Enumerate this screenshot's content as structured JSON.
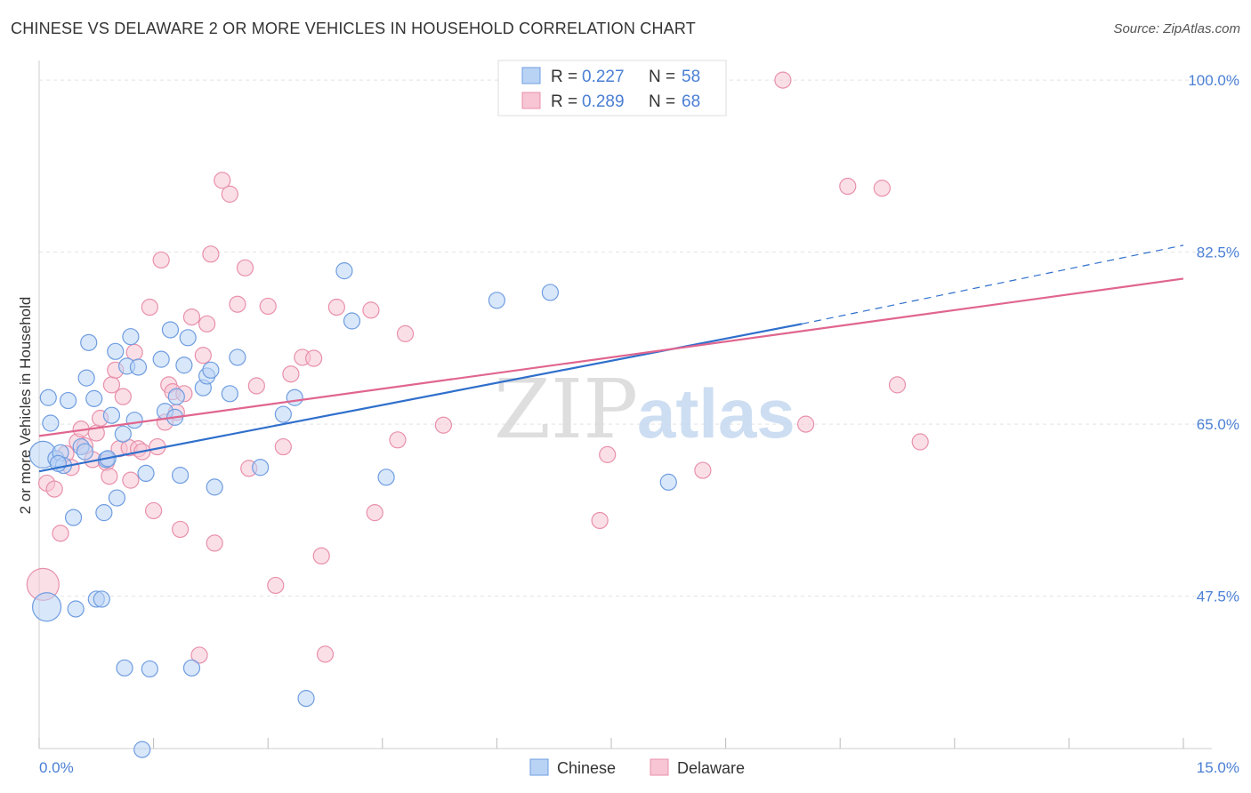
{
  "title": "CHINESE VS DELAWARE 2 OR MORE VEHICLES IN HOUSEHOLD CORRELATION CHART",
  "source": "Source: ZipAtlas.com",
  "watermark": {
    "zip": "ZIP",
    "atlas": "atlas"
  },
  "legend": {
    "r_label": "R = ",
    "n_label": "N = ",
    "entries": [
      {
        "r": "0.227",
        "n": "58"
      },
      {
        "r": "0.289",
        "n": "68"
      }
    ]
  },
  "colors": {
    "chinese_fill": "#b9d3f5",
    "chinese_stroke": "#6f9de0",
    "chinese_line": "#2f6fcc",
    "delaware_fill": "#f7c5d4",
    "delaware_stroke": "#e890aa",
    "delaware_line": "#e0658f",
    "tick_color": "#4a7fd4"
  },
  "chart_data": {
    "type": "scatter",
    "xlabel": "",
    "ylabel": "2 or more Vehicles in Household",
    "xlim": [
      0,
      15
    ],
    "ylim": [
      32,
      102
    ],
    "x_tick_labels": [
      "0.0%",
      "15.0%"
    ],
    "y_ticks": [
      47.5,
      65.0,
      82.5,
      100.0
    ],
    "y_tick_labels": [
      "47.5%",
      "65.0%",
      "82.5%",
      "100.0%"
    ],
    "grid": true,
    "legend_position": "top-center",
    "series": [
      {
        "name": "Chinese",
        "trend": {
          "x0": 0,
          "y0": 60.2,
          "x1": 10.0,
          "y1": 75.2,
          "dash_to_x": 15.0,
          "dash_to_y": 83.2
        },
        "points": [
          [
            0.05,
            61.9
          ],
          [
            0.15,
            65.1
          ],
          [
            0.12,
            67.7
          ],
          [
            0.22,
            61.5
          ],
          [
            0.28,
            62.1
          ],
          [
            0.32,
            60.8
          ],
          [
            0.38,
            67.4
          ],
          [
            0.45,
            55.5
          ],
          [
            0.48,
            46.2
          ],
          [
            0.55,
            62.7
          ],
          [
            0.6,
            62.2
          ],
          [
            0.62,
            69.7
          ],
          [
            0.65,
            73.3
          ],
          [
            0.72,
            67.6
          ],
          [
            0.75,
            47.2
          ],
          [
            0.82,
            47.2
          ],
          [
            0.85,
            56.0
          ],
          [
            0.88,
            61.4
          ],
          [
            0.95,
            65.9
          ],
          [
            1.0,
            72.4
          ],
          [
            1.02,
            57.5
          ],
          [
            1.1,
            64.0
          ],
          [
            1.12,
            40.2
          ],
          [
            1.15,
            70.9
          ],
          [
            1.2,
            73.9
          ],
          [
            1.25,
            65.4
          ],
          [
            1.3,
            70.8
          ],
          [
            1.35,
            31.9
          ],
          [
            1.4,
            60.0
          ],
          [
            1.45,
            40.1
          ],
          [
            1.6,
            71.6
          ],
          [
            1.65,
            66.3
          ],
          [
            1.72,
            74.6
          ],
          [
            1.78,
            65.7
          ],
          [
            1.85,
            59.8
          ],
          [
            1.9,
            71.0
          ],
          [
            1.95,
            73.8
          ],
          [
            2.15,
            68.7
          ],
          [
            2.2,
            69.9
          ],
          [
            2.25,
            70.5
          ],
          [
            2.3,
            58.6
          ],
          [
            2.5,
            68.1
          ],
          [
            2.6,
            71.8
          ],
          [
            2.9,
            60.6
          ],
          [
            3.2,
            66.0
          ],
          [
            3.35,
            67.7
          ],
          [
            3.5,
            37.1
          ],
          [
            4.0,
            80.6
          ],
          [
            4.1,
            75.5
          ],
          [
            4.55,
            59.6
          ],
          [
            6.0,
            77.6
          ],
          [
            6.7,
            78.4
          ],
          [
            8.25,
            59.1
          ],
          [
            2.0,
            40.2
          ],
          [
            1.8,
            67.8
          ],
          [
            0.1,
            46.4
          ],
          [
            0.25,
            61.0
          ],
          [
            0.9,
            61.5
          ]
        ],
        "sizes": [
          15,
          9,
          9,
          9,
          9,
          9,
          9,
          9,
          9,
          9,
          9,
          9,
          9,
          9,
          9,
          9,
          9,
          9,
          9,
          9,
          9,
          9,
          9,
          9,
          9,
          9,
          9,
          9,
          9,
          9,
          9,
          9,
          9,
          9,
          9,
          9,
          9,
          9,
          9,
          9,
          9,
          9,
          9,
          9,
          9,
          9,
          9,
          9,
          9,
          9,
          9,
          9,
          9,
          9,
          9,
          16,
          9,
          9
        ]
      },
      {
        "name": "Delaware",
        "trend": {
          "x0": 0,
          "y0": 63.8,
          "x1": 15.0,
          "y1": 79.8
        },
        "points": [
          [
            0.05,
            48.7
          ],
          [
            0.1,
            59.0
          ],
          [
            0.2,
            58.4
          ],
          [
            0.28,
            53.9
          ],
          [
            0.35,
            62.0
          ],
          [
            0.42,
            60.6
          ],
          [
            0.5,
            63.2
          ],
          [
            0.55,
            64.5
          ],
          [
            0.6,
            62.8
          ],
          [
            0.7,
            61.4
          ],
          [
            0.75,
            64.1
          ],
          [
            0.8,
            65.6
          ],
          [
            0.88,
            61.1
          ],
          [
            0.92,
            59.7
          ],
          [
            0.95,
            69.0
          ],
          [
            1.0,
            70.5
          ],
          [
            1.05,
            62.5
          ],
          [
            1.1,
            67.8
          ],
          [
            1.18,
            62.6
          ],
          [
            1.25,
            72.3
          ],
          [
            1.3,
            62.5
          ],
          [
            1.35,
            62.2
          ],
          [
            1.45,
            76.9
          ],
          [
            1.5,
            56.2
          ],
          [
            1.55,
            62.7
          ],
          [
            1.6,
            81.7
          ],
          [
            1.65,
            65.2
          ],
          [
            1.7,
            69.0
          ],
          [
            1.75,
            68.3
          ],
          [
            1.8,
            66.2
          ],
          [
            1.85,
            54.3
          ],
          [
            1.9,
            68.1
          ],
          [
            2.0,
            75.9
          ],
          [
            2.1,
            41.5
          ],
          [
            2.15,
            72.0
          ],
          [
            2.2,
            75.2
          ],
          [
            2.25,
            82.3
          ],
          [
            2.3,
            52.9
          ],
          [
            2.4,
            89.8
          ],
          [
            2.5,
            88.4
          ],
          [
            2.6,
            77.2
          ],
          [
            2.7,
            80.9
          ],
          [
            2.75,
            60.5
          ],
          [
            2.85,
            68.9
          ],
          [
            3.0,
            77.0
          ],
          [
            3.1,
            48.6
          ],
          [
            3.2,
            62.7
          ],
          [
            3.3,
            70.1
          ],
          [
            3.45,
            71.8
          ],
          [
            3.6,
            71.7
          ],
          [
            3.7,
            51.6
          ],
          [
            3.75,
            41.6
          ],
          [
            3.9,
            76.9
          ],
          [
            4.35,
            76.6
          ],
          [
            4.4,
            56.0
          ],
          [
            4.7,
            63.4
          ],
          [
            4.8,
            74.2
          ],
          [
            5.3,
            64.9
          ],
          [
            7.35,
            55.2
          ],
          [
            7.45,
            61.9
          ],
          [
            8.7,
            60.3
          ],
          [
            9.75,
            100.0
          ],
          [
            10.05,
            65.0
          ],
          [
            10.6,
            89.2
          ],
          [
            11.05,
            89.0
          ],
          [
            11.25,
            69.0
          ],
          [
            11.55,
            63.2
          ],
          [
            1.2,
            59.3
          ]
        ],
        "sizes": [
          18,
          9,
          9,
          9,
          9,
          9,
          9,
          9,
          9,
          9,
          9,
          9,
          9,
          9,
          9,
          9,
          9,
          9,
          9,
          9,
          9,
          9,
          9,
          9,
          9,
          9,
          9,
          9,
          9,
          9,
          9,
          9,
          9,
          9,
          9,
          9,
          9,
          9,
          9,
          9,
          9,
          9,
          9,
          9,
          9,
          9,
          9,
          9,
          9,
          9,
          9,
          9,
          9,
          9,
          9,
          9,
          9,
          9,
          9,
          9,
          9,
          9,
          9,
          9,
          9,
          9,
          9,
          9
        ]
      }
    ]
  }
}
